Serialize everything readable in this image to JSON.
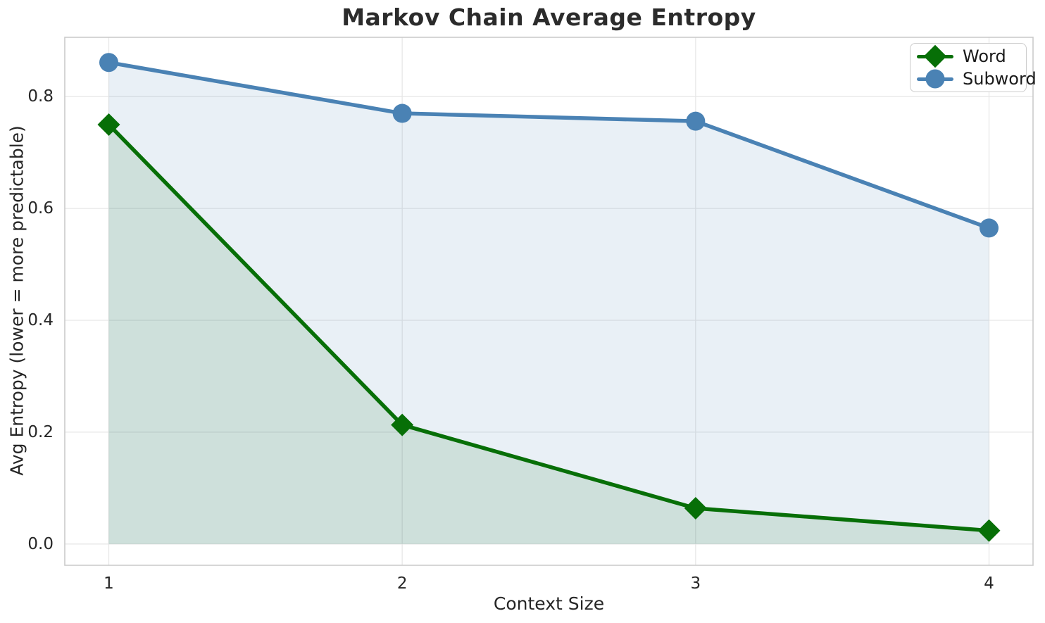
{
  "chart_data": {
    "type": "line",
    "title": "Markov Chain Average Entropy",
    "xlabel": "Context Size",
    "ylabel": "Avg Entropy (lower = more predictable)",
    "x": [
      1,
      2,
      3,
      4
    ],
    "series": [
      {
        "name": "Word",
        "values": [
          0.75,
          0.213,
          0.064,
          0.024
        ],
        "color": "#076f07",
        "marker": "diamond",
        "fill_to_zero": true
      },
      {
        "name": "Subword",
        "values": [
          0.861,
          0.77,
          0.756,
          0.565
        ],
        "color": "#4a82b4",
        "marker": "circle",
        "fill_to_zero": true
      }
    ],
    "xticks": [
      "1",
      "2",
      "3",
      "4"
    ],
    "xtick_values": [
      1,
      2,
      3,
      4
    ],
    "yticks": [
      "0.0",
      "0.2",
      "0.4",
      "0.6",
      "0.8"
    ],
    "ytick_values": [
      0,
      0.2,
      0.4,
      0.6,
      0.8
    ],
    "xlim": [
      0.85,
      4.15
    ],
    "ylim": [
      -0.038,
      0.906
    ],
    "grid": true,
    "legend_position": "upper right",
    "fill_alpha": 0.12,
    "background": "#ffffff",
    "grid_color": "#e7e7e7",
    "spine_color": "#cbcbcb",
    "text_color": "#262626"
  }
}
